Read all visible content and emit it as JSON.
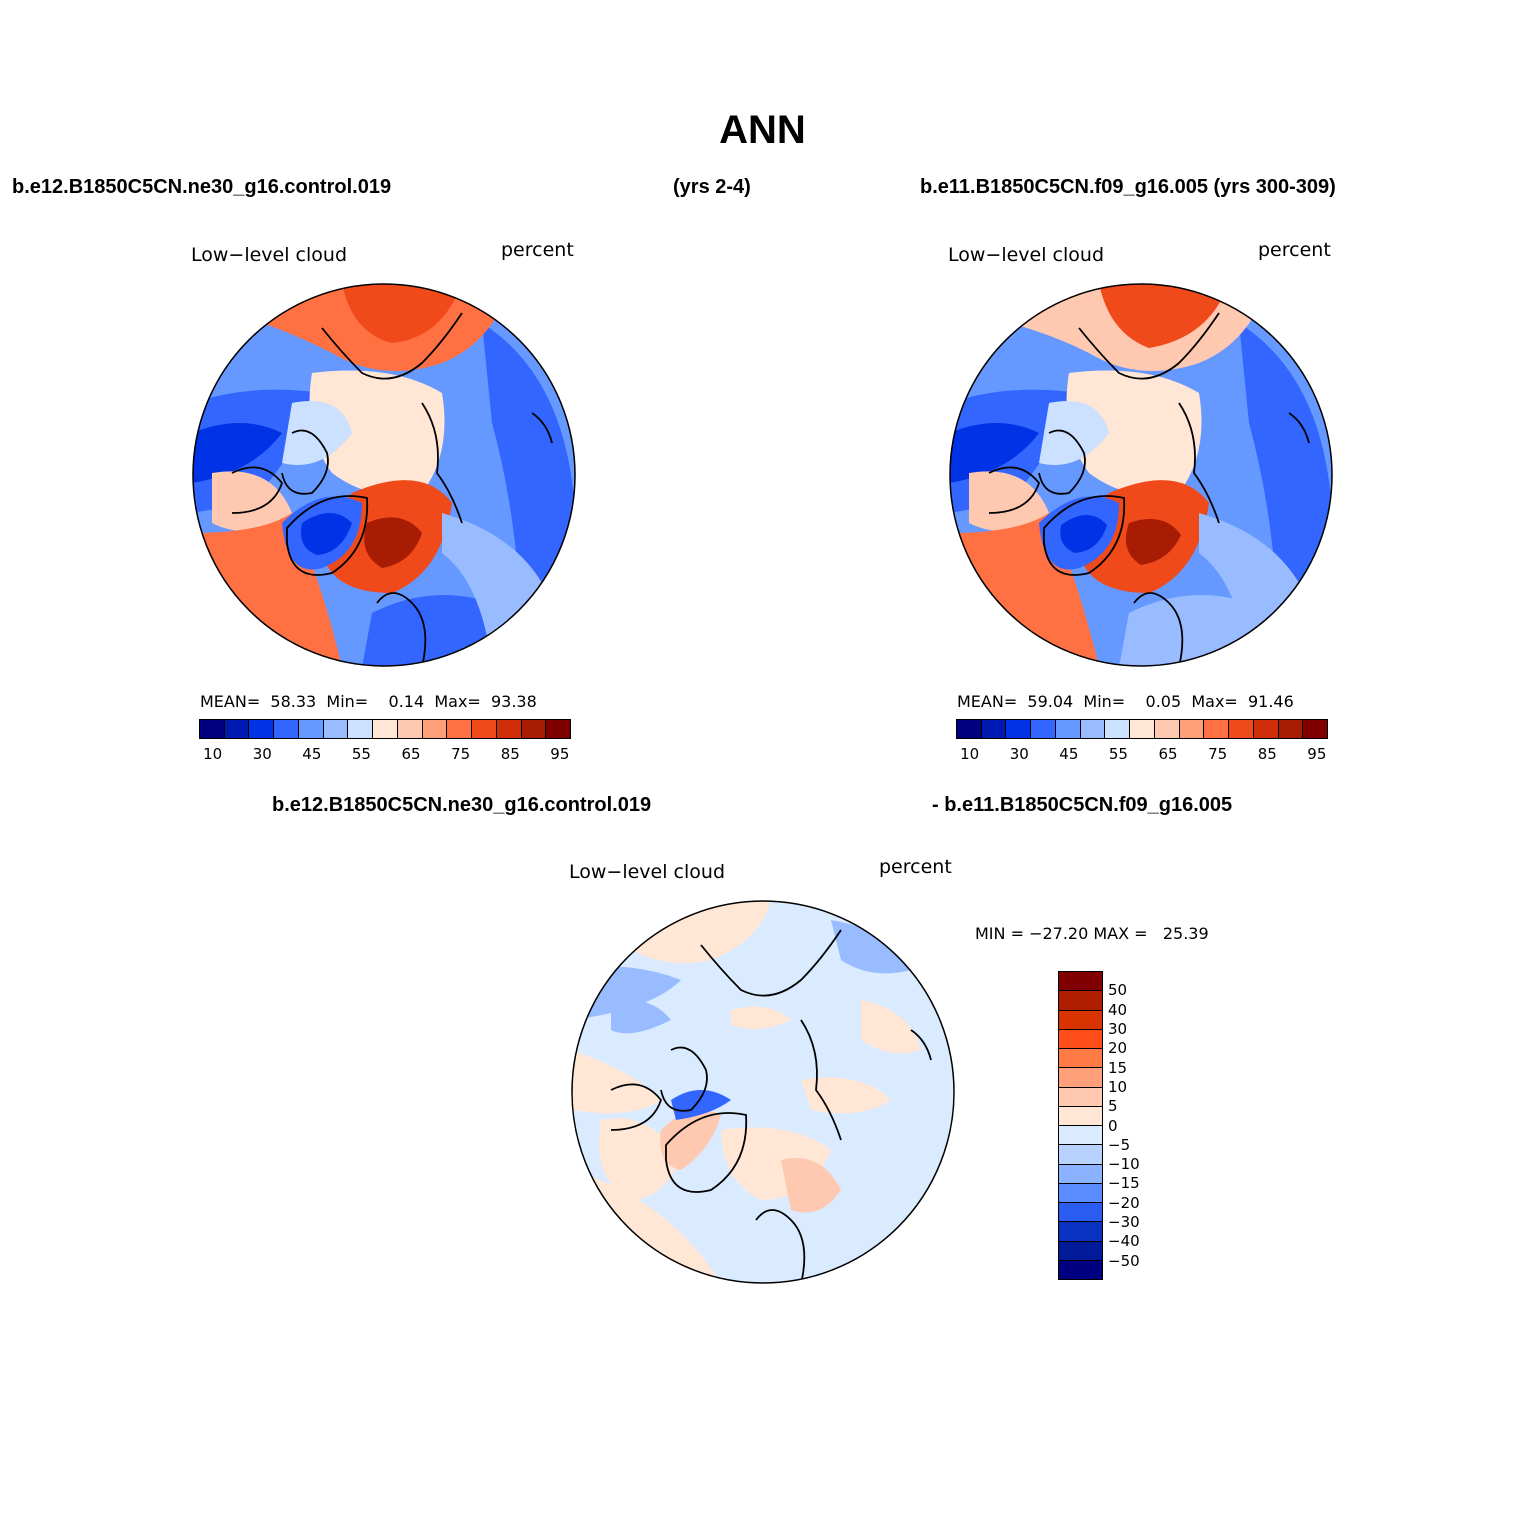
{
  "title": "ANN",
  "header": {
    "left_case": "b.e12.B1850C5CN.ne30_g16.control.019",
    "left_years": "(yrs 2-4)",
    "right_case": "b.e11.B1850C5CN.f09_g16.005 (yrs 300-309)",
    "diff_left": "b.e12.B1850C5CN.ne30_g16.control.019",
    "diff_right": "- b.e11.B1850C5CN.f09_g16.005"
  },
  "panels": [
    {
      "variable": "Low−level cloud",
      "units": "percent",
      "mean_label": "MEAN=",
      "mean": "58.33",
      "min_label": "Min=",
      "min": "0.14",
      "max_label": "Max=",
      "max": "93.38"
    },
    {
      "variable": "Low−level cloud",
      "units": "percent",
      "mean_label": "MEAN=",
      "mean": "59.04",
      "min_label": "Min=",
      "min": "0.05",
      "max_label": "Max=",
      "max": "91.46"
    }
  ],
  "diff_panel": {
    "variable": "Low−level cloud",
    "units": "percent",
    "minmax": "MIN = −27.20 MAX =   25.39"
  },
  "colorbar": {
    "colors": [
      "#00007f",
      "#0019b2",
      "#0033e5",
      "#3366ff",
      "#6699ff",
      "#99bbff",
      "#cce0ff",
      "#ffe6d5",
      "#ffc8b0",
      "#ffa07a",
      "#ff7043",
      "#f04a1a",
      "#d02e0a",
      "#a81c04",
      "#800000"
    ],
    "tick_labels": [
      "10",
      "30",
      "45",
      "55",
      "65",
      "75",
      "85",
      "95"
    ]
  },
  "diff_colorbar": {
    "colors": [
      "#800000",
      "#b01e00",
      "#d93300",
      "#ff4d1a",
      "#ff7a45",
      "#ffa07a",
      "#ffc8b0",
      "#ffe6d5",
      "#daeaff",
      "#b8d2ff",
      "#8ab2ff",
      "#5a8cff",
      "#2a5cf0",
      "#0a32c0",
      "#001a9a",
      "#000080"
    ],
    "tick_labels": [
      "50",
      "40",
      "30",
      "20",
      "15",
      "10",
      "5",
      "0",
      "−5",
      "−10",
      "−15",
      "−20",
      "−30",
      "−40",
      "−50"
    ]
  },
  "map_colors": {
    "deep_blue": "#0033e5",
    "blue": "#3366ff",
    "mid_blue": "#6699ff",
    "light_blue": "#99bbff",
    "pale_blue": "#cce0ff",
    "pale_orange": "#ffe6d5",
    "light_orange": "#ffc8b0",
    "orange": "#ff7043",
    "red_orange": "#f04a1a",
    "dark_red": "#a81c04",
    "diff_base": "#daeaff"
  }
}
